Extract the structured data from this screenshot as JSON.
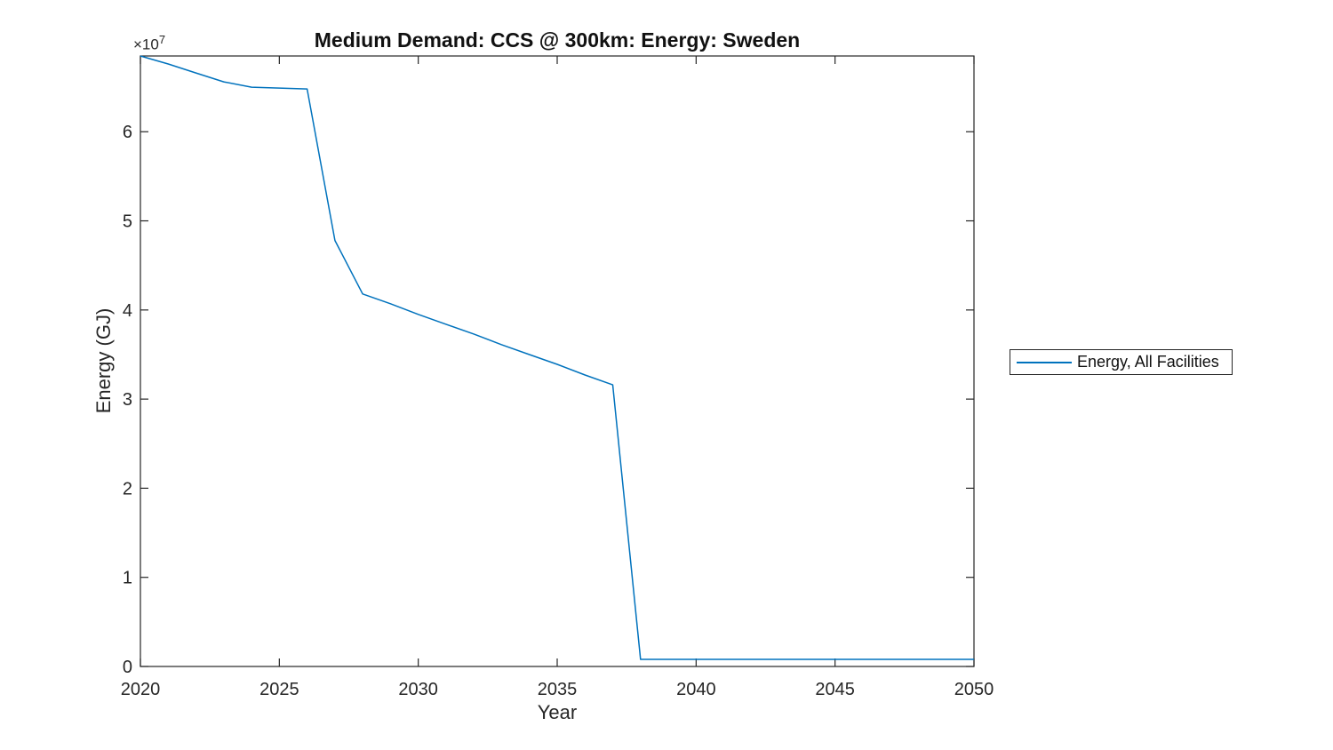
{
  "chart_data": {
    "type": "line",
    "title": "Medium Demand: CCS @ 300km: Energy: Sweden",
    "xlabel": "Year",
    "ylabel": "Energy (GJ)",
    "y_axis_multiplier": {
      "base": "×10",
      "exponent": "7"
    },
    "xlim": [
      2020,
      2050
    ],
    "ylim": [
      0,
      68500000
    ],
    "x_ticks": [
      2020,
      2025,
      2030,
      2035,
      2040,
      2045,
      2050
    ],
    "y_ticks": [
      0,
      10000000,
      20000000,
      30000000,
      40000000,
      50000000,
      60000000
    ],
    "y_tick_labels": [
      "0",
      "1",
      "2",
      "3",
      "4",
      "5",
      "6"
    ],
    "grid": false,
    "box": true,
    "legend": {
      "position": "outside-right",
      "entries": [
        {
          "label": "Energy, All Facilities",
          "color": "#0072BD"
        }
      ]
    },
    "x": [
      2020,
      2021,
      2022,
      2023,
      2024,
      2025,
      2026,
      2027,
      2028,
      2029,
      2030,
      2031,
      2032,
      2033,
      2034,
      2035,
      2036,
      2037,
      2038,
      2039,
      2040,
      2041,
      2042,
      2043,
      2044,
      2045,
      2046,
      2047,
      2048,
      2049,
      2050
    ],
    "series": [
      {
        "name": "Energy, All Facilities",
        "color": "#0072BD",
        "values": [
          68500000,
          67600000,
          66600000,
          65600000,
          65000000,
          64900000,
          64800000,
          47800000,
          41800000,
          40700000,
          39500000,
          38400000,
          37300000,
          36100000,
          35000000,
          33900000,
          32700000,
          31600000,
          800000,
          800000,
          800000,
          800000,
          800000,
          800000,
          800000,
          800000,
          800000,
          800000,
          800000,
          800000,
          800000
        ]
      }
    ]
  },
  "colors": {
    "background": "#ffffff",
    "axis": "#262626",
    "line": "#0072BD"
  }
}
